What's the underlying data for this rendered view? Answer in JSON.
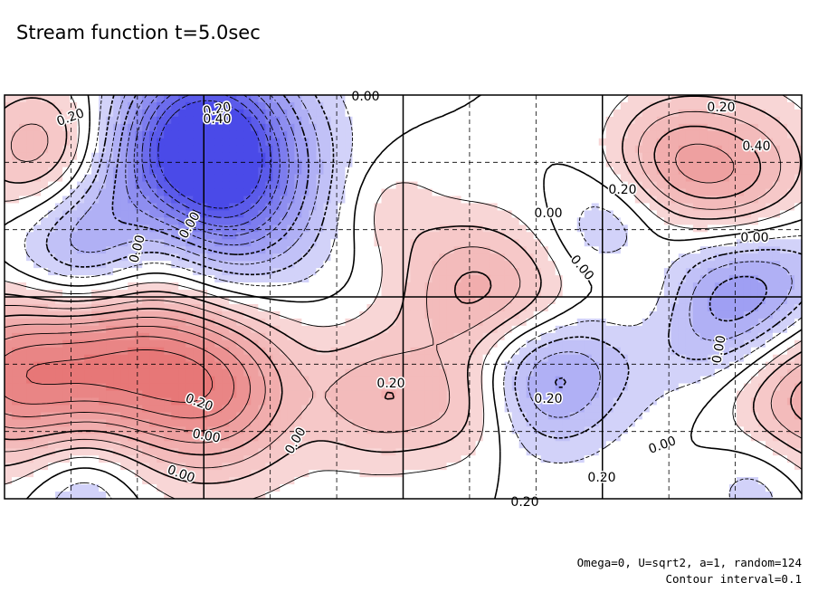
{
  "chart_data": {
    "type": "heatmap",
    "title": "Stream function t=5.0sec",
    "contour_labels": [
      "0.20",
      "0.20",
      "0.40",
      "0.00",
      "0.20",
      "0.40",
      "0.20",
      "0.00",
      "0.00",
      "0.00",
      "0.00",
      "0.00",
      "0.00",
      "0.20",
      "0.20",
      "0.00",
      "0.00",
      "0.20",
      "0.00",
      "0.00",
      "0.20",
      "0.20"
    ],
    "grid": true,
    "colors": {
      "positive": "#e46a6a",
      "negative": "#4a4ae8",
      "background": "#ffffff",
      "line": "#000000"
    },
    "centers": [
      {
        "x": 0.05,
        "y": 0.15,
        "v": 0.45
      },
      {
        "x": 0.14,
        "y": 0.63,
        "v": 0.75
      },
      {
        "x": 0.27,
        "y": 0.73,
        "v": 0.6
      },
      {
        "x": 0.0,
        "y": 0.7,
        "v": 0.6
      },
      {
        "x": 1.0,
        "y": 0.7,
        "v": 0.75
      },
      {
        "x": 0.19,
        "y": 0.34,
        "v": 0.35
      },
      {
        "x": 0.25,
        "y": 0.09,
        "v": -0.55
      },
      {
        "x": 0.26,
        "y": 0.22,
        "v": -0.85
      },
      {
        "x": 0.11,
        "y": 0.39,
        "v": -0.6
      },
      {
        "x": 0.47,
        "y": 0.75,
        "v": 0.35
      },
      {
        "x": 0.58,
        "y": 0.77,
        "v": 0.25
      },
      {
        "x": 0.59,
        "y": 0.49,
        "v": 0.45
      },
      {
        "x": 0.92,
        "y": 0.23,
        "v": 0.55
      },
      {
        "x": 0.83,
        "y": 0.15,
        "v": 0.3
      },
      {
        "x": 0.94,
        "y": 0.52,
        "v": -0.8
      },
      {
        "x": 0.68,
        "y": 0.68,
        "v": -0.5
      },
      {
        "x": 0.95,
        "y": 0.95,
        "v": -0.25
      },
      {
        "x": 0.1,
        "y": 0.97,
        "v": -0.25
      },
      {
        "x": 0.48,
        "y": 0.28,
        "v": 0.15
      },
      {
        "x": 0.68,
        "y": 0.53,
        "v": 0.2
      },
      {
        "x": 0.8,
        "y": 0.48,
        "v": 0.2
      },
      {
        "x": 0.76,
        "y": 0.33,
        "v": -0.2
      }
    ]
  },
  "footer": {
    "line1": "Omega=0, U=sqrt2, a=1, random=124",
    "line2": "Contour interval=0.1"
  }
}
